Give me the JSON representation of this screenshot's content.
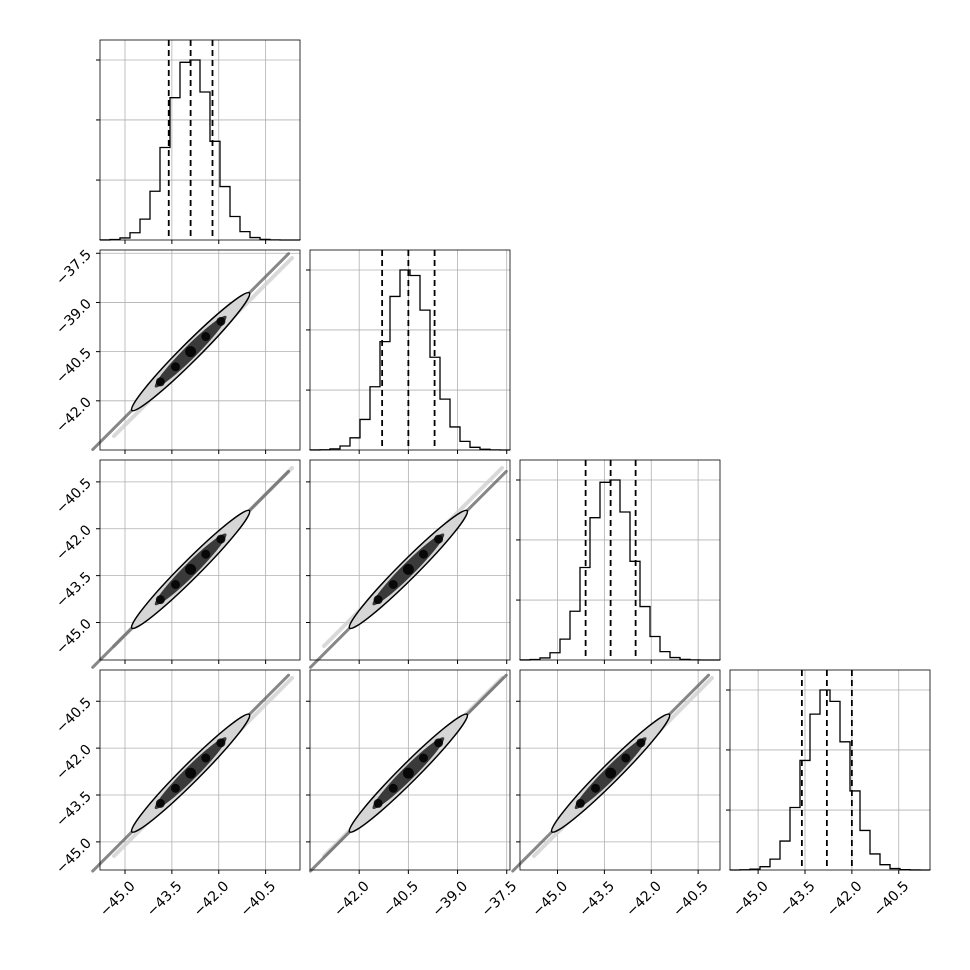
{
  "chart_data": {
    "type": "corner",
    "title": "",
    "grid": true,
    "dimensions": [
      {
        "name": "",
        "range": [
          -45.8,
          -39.4
        ],
        "ticks": [
          -45.0,
          -43.5,
          -42.0,
          -40.5
        ],
        "tick_labels": [
          "−45.0",
          "−43.5",
          "−42.0",
          "−40.5"
        ],
        "quantiles": [
          -43.6,
          -42.9,
          -42.2
        ],
        "peak": -42.9,
        "sigma": 0.7
      },
      {
        "name": "",
        "range": [
          -43.5,
          -37.4
        ],
        "ticks": [
          -42.0,
          -40.5,
          -39.0,
          -37.5
        ],
        "tick_labels": [
          "−42.0",
          "−40.5",
          "−39.0",
          "−37.5"
        ],
        "quantiles": [
          -41.3,
          -40.5,
          -39.7
        ],
        "peak": -40.5,
        "sigma": 0.7
      },
      {
        "name": "",
        "range": [
          -46.2,
          -39.8
        ],
        "ticks": [
          -45.0,
          -43.5,
          -42.0,
          -40.5
        ],
        "tick_labels": [
          "−45.0",
          "−43.5",
          "−42.0",
          "−40.5"
        ],
        "quantiles": [
          -44.1,
          -43.3,
          -42.5
        ],
        "peak": -43.3,
        "sigma": 0.7
      },
      {
        "name": "",
        "range": [
          -45.9,
          -39.5
        ],
        "ticks": [
          -45.0,
          -43.5,
          -42.0,
          -40.5
        ],
        "tick_labels": [
          "−45.0",
          "−43.5",
          "−42.0",
          "−40.5"
        ],
        "quantiles": [
          -43.6,
          -42.8,
          -42.0
        ],
        "peak": -42.8,
        "sigma": 0.7
      }
    ],
    "histogram_bins": 20,
    "quantile_levels": [
      0.16,
      0.5,
      0.84
    ],
    "correlation": 0.99
  }
}
